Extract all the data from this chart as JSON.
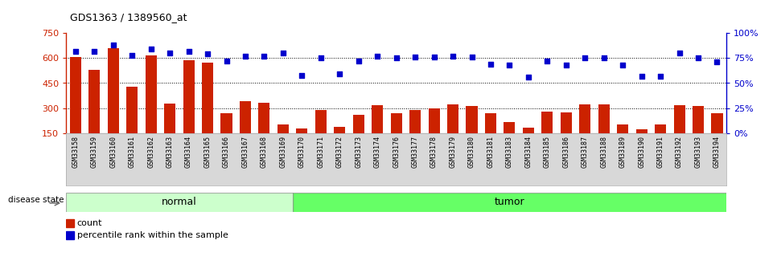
{
  "title": "GDS1363 / 1389560_at",
  "samples": [
    "GSM33158",
    "GSM33159",
    "GSM33160",
    "GSM33161",
    "GSM33162",
    "GSM33163",
    "GSM33164",
    "GSM33165",
    "GSM33166",
    "GSM33167",
    "GSM33168",
    "GSM33169",
    "GSM33170",
    "GSM33171",
    "GSM33172",
    "GSM33173",
    "GSM33174",
    "GSM33176",
    "GSM33177",
    "GSM33178",
    "GSM33179",
    "GSM33180",
    "GSM33181",
    "GSM33183",
    "GSM33184",
    "GSM33185",
    "GSM33186",
    "GSM33187",
    "GSM33188",
    "GSM33189",
    "GSM33190",
    "GSM33191",
    "GSM33192",
    "GSM33193",
    "GSM33194"
  ],
  "counts": [
    605,
    530,
    660,
    430,
    615,
    325,
    590,
    575,
    270,
    340,
    330,
    200,
    175,
    290,
    185,
    260,
    315,
    270,
    290,
    300,
    320,
    310,
    270,
    215,
    180,
    280,
    275,
    320,
    320,
    200,
    170,
    200,
    315,
    310,
    270
  ],
  "percentile_ranks": [
    82,
    82,
    88,
    78,
    84,
    80,
    82,
    79,
    72,
    77,
    77,
    80,
    58,
    75,
    59,
    72,
    77,
    75,
    76,
    76,
    77,
    76,
    69,
    68,
    56,
    72,
    68,
    75,
    75,
    68,
    57,
    57,
    80,
    75,
    71
  ],
  "group": [
    "normal",
    "normal",
    "normal",
    "normal",
    "normal",
    "normal",
    "normal",
    "normal",
    "normal",
    "normal",
    "normal",
    "normal",
    "tumor",
    "tumor",
    "tumor",
    "tumor",
    "tumor",
    "tumor",
    "tumor",
    "tumor",
    "tumor",
    "tumor",
    "tumor",
    "tumor",
    "tumor",
    "tumor",
    "tumor",
    "tumor",
    "tumor",
    "tumor",
    "tumor",
    "tumor",
    "tumor",
    "tumor",
    "tumor"
  ],
  "normal_color": "#ccffcc",
  "tumor_color": "#66ff66",
  "bar_color": "#cc2200",
  "dot_color": "#0000cc",
  "ylim_left": [
    150,
    750
  ],
  "ylim_right": [
    0,
    100
  ],
  "yticks_left": [
    150,
    300,
    450,
    600,
    750
  ],
  "yticks_right": [
    0,
    25,
    50,
    75,
    100
  ],
  "ytick_labels_right": [
    "0%",
    "25%",
    "50%",
    "75%",
    "100%"
  ],
  "hlines": [
    300,
    450,
    600
  ],
  "legend_count_label": "count",
  "legend_pct_label": "percentile rank within the sample",
  "disease_state_label": "disease state",
  "normal_label": "normal",
  "tumor_label": "tumor",
  "plot_bg_color": "#ffffff",
  "xtick_bg_color": "#d8d8d8"
}
